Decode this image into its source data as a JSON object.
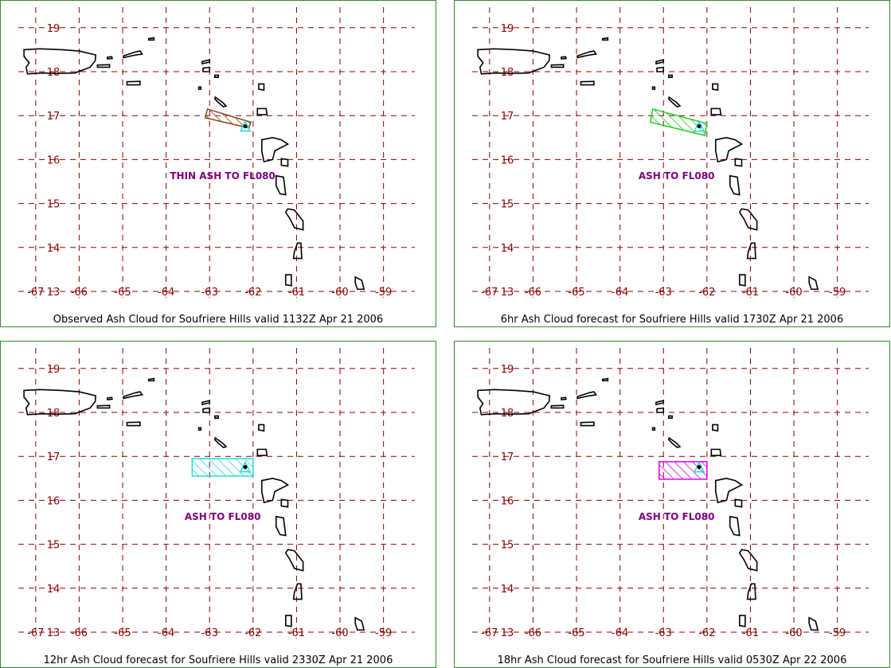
{
  "colors": {
    "frame": "#2e8b2e",
    "grid": "#8b0000",
    "coast": "#000000",
    "label": "#800080"
  },
  "axes": {
    "lon_labels": [
      "-67",
      "-66",
      "-65",
      "-64",
      "-63",
      "-62",
      "-61",
      "-60",
      "-59"
    ],
    "lat_labels": [
      "13",
      "14",
      "15",
      "16",
      "17",
      "18",
      "19"
    ]
  },
  "panels": [
    {
      "caption": "Observed Ash Cloud for Soufriere  Hills valid 1132Z Apr 21 2006",
      "ash_label": "THIN ASH TO FL080",
      "ash_color": "#8b4513",
      "ash_polygon_lonlat": [
        [
          -63.05,
          17.15
        ],
        [
          -62.05,
          16.85
        ],
        [
          -62.1,
          16.72
        ],
        [
          -63.1,
          16.95
        ]
      ]
    },
    {
      "caption": "6hr Ash Cloud forecast for Soufriere  Hills valid 1730Z Apr 21 2006",
      "ash_label": "ASH TO FL080",
      "ash_color": "#22cc22",
      "ash_polygon_lonlat": [
        [
          -63.25,
          17.15
        ],
        [
          -62.0,
          16.82
        ],
        [
          -62.05,
          16.55
        ],
        [
          -63.3,
          16.85
        ]
      ]
    },
    {
      "caption": "12hr Ash Cloud forecast for Soufriere  Hills valid 2330Z Apr 21 2006",
      "ash_label": "ASH TO FL080",
      "ash_color": "#22dddd",
      "ash_polygon_lonlat": [
        [
          -63.4,
          16.95
        ],
        [
          -62.0,
          16.95
        ],
        [
          -62.0,
          16.55
        ],
        [
          -63.4,
          16.55
        ]
      ]
    },
    {
      "caption": "18hr Ash Cloud forecast for Soufriere  Hills valid 0530Z Apr 22 2006",
      "ash_label": "ASH TO FL080",
      "ash_color": "#dd00dd",
      "ash_polygon_lonlat": [
        [
          -63.1,
          16.88
        ],
        [
          -62.0,
          16.88
        ],
        [
          -62.0,
          16.48
        ],
        [
          -63.1,
          16.48
        ]
      ]
    }
  ],
  "volcano": {
    "name_icon": "volcano-triangle-icon",
    "lon": -62.18,
    "lat": 16.72
  }
}
